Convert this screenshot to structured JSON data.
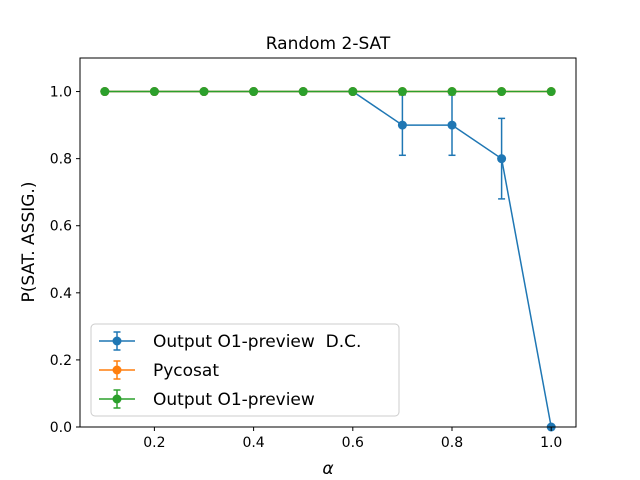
{
  "chart_data": {
    "type": "line",
    "title": "Random 2-SAT",
    "xlabel": "α",
    "ylabel": "P(SAT. ASSIG.)",
    "xlim": [
      0.05,
      1.05
    ],
    "ylim": [
      0.0,
      1.1
    ],
    "xticks": [
      "0.2",
      "0.4",
      "0.6",
      "0.8",
      "1.0"
    ],
    "xtick_values": [
      0.2,
      0.4,
      0.6,
      0.8,
      1.0
    ],
    "yticks": [
      "0.0",
      "0.2",
      "0.4",
      "0.6",
      "0.8",
      "1.0"
    ],
    "ytick_values": [
      0.0,
      0.2,
      0.4,
      0.6,
      0.8,
      1.0
    ],
    "legend_position": "lower-left",
    "series": [
      {
        "name": "Output O1-preview  D.C.",
        "color": "#1f77b4",
        "x": [
          0.1,
          0.2,
          0.3,
          0.4,
          0.5,
          0.6,
          0.7,
          0.8,
          0.9,
          1.0
        ],
        "values": [
          1.0,
          1.0,
          1.0,
          1.0,
          1.0,
          1.0,
          0.9,
          0.9,
          0.8,
          0.0
        ],
        "err": [
          0.0,
          0.0,
          0.0,
          0.0,
          0.0,
          0.0,
          0.09,
          0.09,
          0.12,
          0.0
        ]
      },
      {
        "name": "Pycosat",
        "color": "#ff7f0e",
        "x": [
          0.1,
          0.2,
          0.3,
          0.4,
          0.5,
          0.6,
          0.7,
          0.8,
          0.9,
          1.0
        ],
        "values": [
          1.0,
          1.0,
          1.0,
          1.0,
          1.0,
          1.0,
          1.0,
          1.0,
          1.0,
          1.0
        ],
        "err": [
          0.0,
          0.0,
          0.0,
          0.0,
          0.0,
          0.0,
          0.0,
          0.0,
          0.0,
          0.0
        ]
      },
      {
        "name": "Output O1-preview",
        "color": "#2ca02c",
        "x": [
          0.1,
          0.2,
          0.3,
          0.4,
          0.5,
          0.6,
          0.7,
          0.8,
          0.9,
          1.0
        ],
        "values": [
          1.0,
          1.0,
          1.0,
          1.0,
          1.0,
          1.0,
          1.0,
          1.0,
          1.0,
          1.0
        ],
        "err": [
          0.0,
          0.0,
          0.0,
          0.0,
          0.0,
          0.0,
          0.0,
          0.0,
          0.0,
          0.0
        ]
      }
    ]
  }
}
